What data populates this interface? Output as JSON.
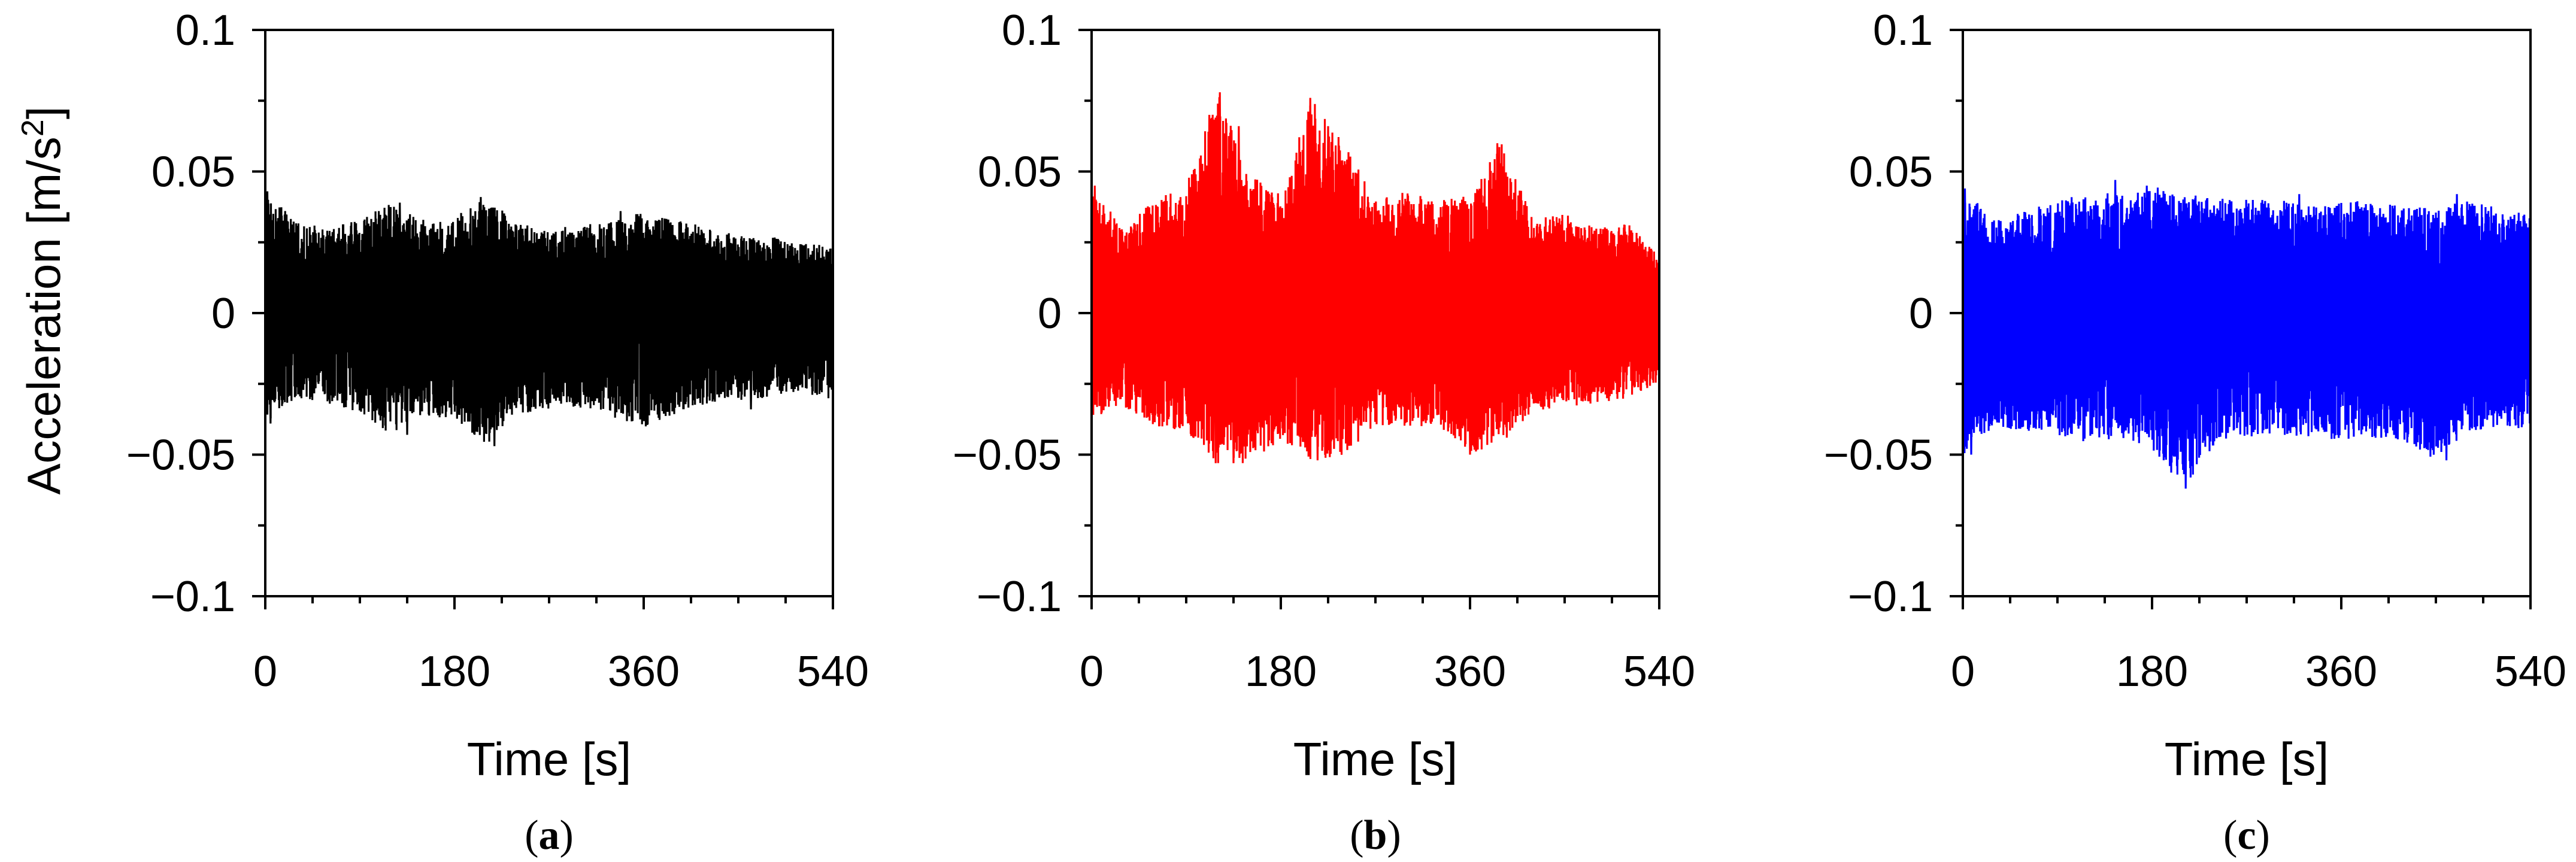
{
  "figure": {
    "y_axis_label_text": "Acceleration [m/s",
    "y_axis_label_sup": "2",
    "y_axis_label_close": "]"
  },
  "chart_data": [
    {
      "type": "line",
      "panel_open": "(",
      "panel_letter": "a",
      "panel_close": ")",
      "xlabel": "Time [s]",
      "ylabel": "Acceleration [m/s2]",
      "xlim": [
        0,
        540
      ],
      "ylim": [
        -0.1,
        0.1
      ],
      "xticks": [
        0,
        180,
        360,
        540
      ],
      "yticks": [
        0.1,
        0.05,
        0,
        -0.05,
        -0.1
      ],
      "xtick_labels": [
        "0",
        "180",
        "360",
        "540"
      ],
      "ytick_labels": [
        "0.1",
        "0.05",
        "0",
        "−0.05",
        "−0.1"
      ],
      "color": "#000000",
      "envelope": {
        "x": [
          0,
          30,
          60,
          90,
          120,
          150,
          180,
          210,
          240,
          270,
          300,
          330,
          360,
          390,
          420,
          450,
          480,
          510,
          540
        ],
        "max": [
          0.043,
          0.032,
          0.03,
          0.033,
          0.039,
          0.033,
          0.034,
          0.041,
          0.032,
          0.03,
          0.031,
          0.033,
          0.036,
          0.034,
          0.03,
          0.028,
          0.027,
          0.025,
          0.024
        ],
        "min": [
          -0.039,
          -0.03,
          -0.032,
          -0.035,
          -0.043,
          -0.036,
          -0.038,
          -0.047,
          -0.036,
          -0.034,
          -0.034,
          -0.037,
          -0.04,
          -0.036,
          -0.032,
          -0.031,
          -0.03,
          -0.028,
          -0.031
        ]
      },
      "peaks": [
        {
          "x": 2,
          "y": 0.043
        },
        {
          "x": 5,
          "y": -0.039
        },
        {
          "x": 108,
          "y": 0.036
        },
        {
          "x": 128,
          "y": 0.039
        },
        {
          "x": 135,
          "y": -0.043
        },
        {
          "x": 205,
          "y": 0.041
        },
        {
          "x": 218,
          "y": -0.047
        },
        {
          "x": 197,
          "y": -0.042
        },
        {
          "x": 338,
          "y": 0.036
        },
        {
          "x": 357,
          "y": 0.035
        },
        {
          "x": 362,
          "y": -0.04
        },
        {
          "x": 462,
          "y": -0.034
        }
      ]
    },
    {
      "type": "line",
      "panel_open": "(",
      "panel_letter": "b",
      "panel_close": ")",
      "xlabel": "Time [s]",
      "ylabel": "Acceleration [m/s2]",
      "xlim": [
        0,
        540
      ],
      "ylim": [
        -0.1,
        0.1
      ],
      "xticks": [
        0,
        180,
        360,
        540
      ],
      "yticks": [
        0.1,
        0.05,
        0,
        -0.05,
        -0.1
      ],
      "xtick_labels": [
        "0",
        "180",
        "360",
        "540"
      ],
      "ytick_labels": [
        "0.1",
        "0.05",
        "0",
        "−0.05",
        "−0.1"
      ],
      "color": "#ff0000",
      "envelope": {
        "x": [
          0,
          30,
          60,
          90,
          120,
          150,
          180,
          210,
          240,
          270,
          300,
          330,
          360,
          390,
          420,
          450,
          480,
          510,
          540
        ],
        "max": [
          0.045,
          0.03,
          0.04,
          0.045,
          0.078,
          0.05,
          0.043,
          0.076,
          0.06,
          0.04,
          0.043,
          0.04,
          0.042,
          0.06,
          0.033,
          0.035,
          0.03,
          0.032,
          0.02
        ],
        "min": [
          -0.038,
          -0.033,
          -0.04,
          -0.042,
          -0.053,
          -0.053,
          -0.045,
          -0.052,
          -0.05,
          -0.04,
          -0.04,
          -0.04,
          -0.05,
          -0.045,
          -0.035,
          -0.033,
          -0.032,
          -0.03,
          -0.025
        ]
      },
      "peaks": [
        {
          "x": 3,
          "y": 0.045
        },
        {
          "x": 122,
          "y": 0.078
        },
        {
          "x": 112,
          "y": 0.07
        },
        {
          "x": 140,
          "y": 0.066
        },
        {
          "x": 118,
          "y": -0.053
        },
        {
          "x": 135,
          "y": -0.053
        },
        {
          "x": 208,
          "y": 0.076
        },
        {
          "x": 225,
          "y": 0.066
        },
        {
          "x": 215,
          "y": -0.052
        },
        {
          "x": 360,
          "y": -0.05
        },
        {
          "x": 386,
          "y": 0.06
        },
        {
          "x": 395,
          "y": -0.044
        }
      ]
    },
    {
      "type": "line",
      "panel_open": "(",
      "panel_letter": "c",
      "panel_close": ")",
      "xlabel": "Time [s]",
      "ylabel": "Acceleration [m/s2]",
      "xlim": [
        0,
        540
      ],
      "ylim": [
        -0.1,
        0.1
      ],
      "xticks": [
        0,
        180,
        360,
        540
      ],
      "yticks": [
        0.1,
        0.05,
        0,
        -0.05,
        -0.1
      ],
      "xtick_labels": [
        "0",
        "180",
        "360",
        "540"
      ],
      "ytick_labels": [
        "0.1",
        "0.05",
        "0",
        "−0.05",
        "−0.1"
      ],
      "color": "#0000ff",
      "envelope": {
        "x": [
          0,
          30,
          60,
          90,
          120,
          150,
          180,
          210,
          240,
          270,
          300,
          330,
          360,
          390,
          420,
          450,
          480,
          510,
          540
        ],
        "max": [
          0.044,
          0.033,
          0.036,
          0.04,
          0.043,
          0.042,
          0.045,
          0.042,
          0.041,
          0.04,
          0.04,
          0.038,
          0.04,
          0.039,
          0.038,
          0.037,
          0.04,
          0.037,
          0.036
        ],
        "min": [
          -0.05,
          -0.04,
          -0.042,
          -0.043,
          -0.046,
          -0.045,
          -0.048,
          -0.062,
          -0.046,
          -0.044,
          -0.043,
          -0.044,
          -0.045,
          -0.044,
          -0.046,
          -0.052,
          -0.042,
          -0.04,
          -0.041
        ]
      },
      "peaks": [
        {
          "x": 2,
          "y": 0.044
        },
        {
          "x": 8,
          "y": -0.05
        },
        {
          "x": 145,
          "y": 0.047
        },
        {
          "x": 175,
          "y": 0.045
        },
        {
          "x": 212,
          "y": -0.062
        },
        {
          "x": 460,
          "y": -0.052
        },
        {
          "x": 470,
          "y": 0.042
        },
        {
          "x": 320,
          "y": 0.042
        }
      ]
    }
  ]
}
